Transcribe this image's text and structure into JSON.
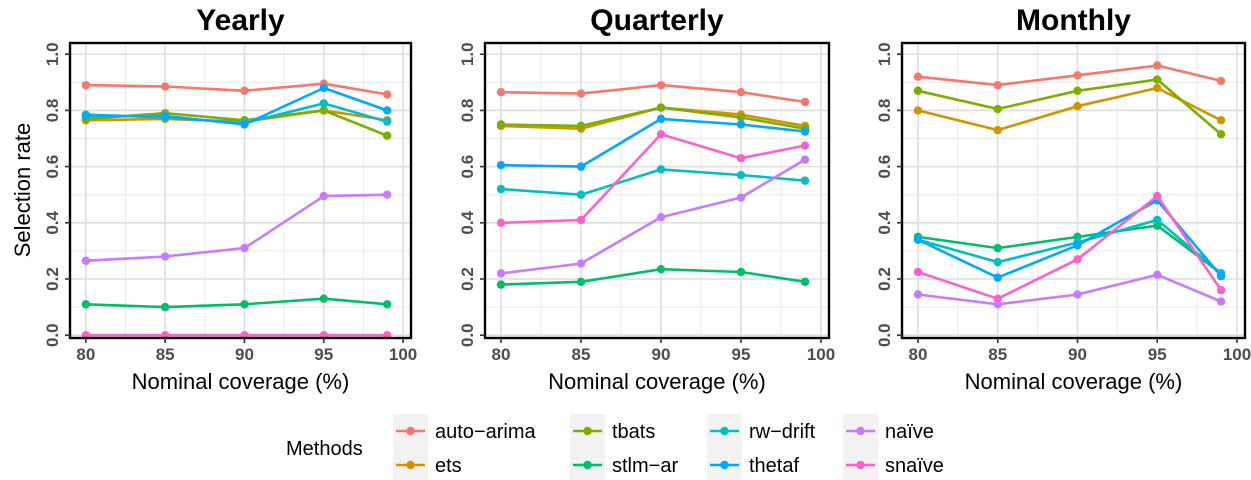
{
  "chart_data": {
    "type": "line",
    "ylabel": "Selection rate",
    "xlabel": "Nominal coverage (%)",
    "legend_title": "Methods",
    "legend_position": "bottom",
    "grid": true,
    "x": [
      80,
      85,
      90,
      95,
      99
    ],
    "xticks": [
      80,
      85,
      90,
      95,
      100
    ],
    "yticks": [
      0.0,
      0.2,
      0.4,
      0.6,
      0.8,
      1.0
    ],
    "ytick_labels": [
      "0.0",
      "0.2",
      "0.4",
      "0.6",
      "0.8",
      "1.0"
    ],
    "xlim": [
      79,
      100.5
    ],
    "ylim": [
      -0.01,
      1.04
    ],
    "colors": {
      "auto-arima": "#F8766D",
      "ets": "#CD9600",
      "tbats": "#7CAE00",
      "stlm-ar": "#00BE67",
      "rw-drift": "#00BFC4",
      "thetaf": "#00A9FF",
      "naive": "#C77CFF",
      "snaive": "#FF61CC"
    },
    "legend": [
      {
        "key": "auto-arima",
        "label": "auto−arima"
      },
      {
        "key": "ets",
        "label": "ets"
      },
      {
        "key": "tbats",
        "label": "tbats"
      },
      {
        "key": "stlm-ar",
        "label": "stlm−ar"
      },
      {
        "key": "rw-drift",
        "label": "rw−drift"
      },
      {
        "key": "thetaf",
        "label": "thetaf"
      },
      {
        "key": "naive",
        "label": "naïve"
      },
      {
        "key": "snaive",
        "label": "snaïve"
      }
    ],
    "panels": [
      {
        "title": "Yearly",
        "series": [
          {
            "key": "auto-arima",
            "values": [
              0.89,
              0.885,
              0.87,
              0.895,
              0.857
            ]
          },
          {
            "key": "ets",
            "values": [
              0.765,
              0.77,
              0.76,
              0.8,
              0.765
            ]
          },
          {
            "key": "tbats",
            "values": [
              0.77,
              0.79,
              0.765,
              0.8,
              0.71
            ]
          },
          {
            "key": "stlm-ar",
            "values": [
              0.11,
              0.1,
              0.11,
              0.13,
              0.11
            ]
          },
          {
            "key": "rw-drift",
            "values": [
              0.785,
              0.775,
              0.755,
              0.825,
              0.76
            ]
          },
          {
            "key": "thetaf",
            "values": [
              0.78,
              0.78,
              0.75,
              0.88,
              0.8
            ]
          },
          {
            "key": "naive",
            "values": [
              0.265,
              0.28,
              0.31,
              0.495,
              0.5
            ]
          },
          {
            "key": "snaive",
            "values": [
              0.0,
              0.0,
              0.0,
              0.0,
              0.0
            ]
          }
        ]
      },
      {
        "title": "Quarterly",
        "series": [
          {
            "key": "auto-arima",
            "values": [
              0.865,
              0.86,
              0.89,
              0.865,
              0.83
            ]
          },
          {
            "key": "ets",
            "values": [
              0.745,
              0.735,
              0.81,
              0.785,
              0.745
            ]
          },
          {
            "key": "tbats",
            "values": [
              0.75,
              0.745,
              0.81,
              0.775,
              0.735
            ]
          },
          {
            "key": "stlm-ar",
            "values": [
              0.18,
              0.19,
              0.235,
              0.225,
              0.19
            ]
          },
          {
            "key": "rw-drift",
            "values": [
              0.52,
              0.5,
              0.59,
              0.57,
              0.55
            ]
          },
          {
            "key": "thetaf",
            "values": [
              0.605,
              0.6,
              0.77,
              0.75,
              0.725
            ]
          },
          {
            "key": "naive",
            "values": [
              0.22,
              0.255,
              0.42,
              0.49,
              0.625
            ]
          },
          {
            "key": "snaive",
            "values": [
              0.4,
              0.41,
              0.715,
              0.63,
              0.675
            ]
          }
        ]
      },
      {
        "title": "Monthly",
        "series": [
          {
            "key": "auto-arima",
            "values": [
              0.92,
              0.89,
              0.925,
              0.96,
              0.905
            ]
          },
          {
            "key": "ets",
            "values": [
              0.8,
              0.73,
              0.815,
              0.88,
              0.765
            ]
          },
          {
            "key": "tbats",
            "values": [
              0.87,
              0.805,
              0.87,
              0.91,
              0.715
            ]
          },
          {
            "key": "stlm-ar",
            "values": [
              0.35,
              0.31,
              0.35,
              0.39,
              0.22
            ]
          },
          {
            "key": "rw-drift",
            "values": [
              0.34,
              0.26,
              0.33,
              0.41,
              0.22
            ]
          },
          {
            "key": "thetaf",
            "values": [
              0.34,
              0.205,
              0.32,
              0.48,
              0.21
            ]
          },
          {
            "key": "naive",
            "values": [
              0.145,
              0.11,
              0.145,
              0.215,
              0.12
            ]
          },
          {
            "key": "snaive",
            "values": [
              0.225,
              0.13,
              0.27,
              0.495,
              0.16
            ]
          }
        ]
      }
    ]
  }
}
